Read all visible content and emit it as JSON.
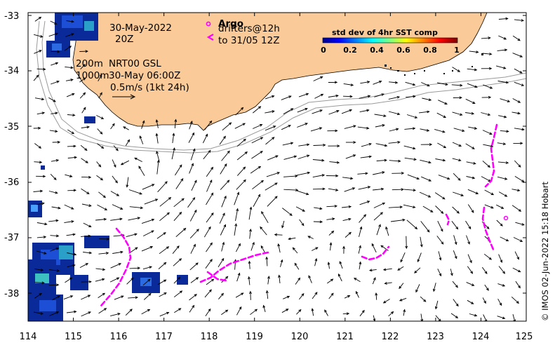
{
  "map": {
    "lon_ticks": [
      "114",
      "115",
      "116",
      "117",
      "118",
      "119",
      "120",
      "121",
      "122",
      "123",
      "124",
      "125"
    ],
    "lat_ticks": [
      "-33",
      "-34",
      "-35",
      "-36",
      "-37",
      "-38"
    ],
    "lon_range": [
      114,
      125
    ],
    "lat_range": [
      -38.5,
      -33
    ],
    "land_color": "#FACB98",
    "vector_color": "#000000",
    "drifter_color": "#FF00FF"
  },
  "annotations": {
    "date": "30-May-2022",
    "time": "20Z",
    "argo_label": "Argo",
    "drifters_label": "drifters@12h",
    "drifters_to": "to 31/05 12Z",
    "contour_200": "200m",
    "contour_1000": "1000m",
    "product": "NRT00 GSL",
    "product_time": "30-May 06:00Z",
    "scale_label": "0.5m/s (1kt 24h)"
  },
  "colorbar": {
    "title": "std dev of 4hr SST comp",
    "ticks": [
      "0",
      "0.2",
      "0.4",
      "0.6",
      "0.8",
      "1"
    ]
  },
  "credit": "© IMOS 02-Jun-2022 15:18 Hobart"
}
